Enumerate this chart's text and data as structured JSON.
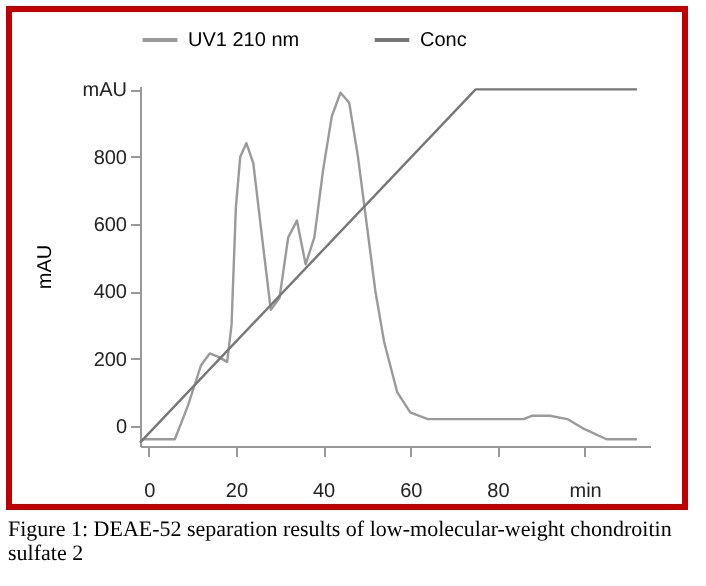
{
  "chart_data": {
    "type": "line",
    "xlabel": null,
    "ylabel": "mAU",
    "x": [
      -2,
      6,
      9,
      12,
      14,
      16,
      18,
      19,
      20,
      21,
      22.4,
      24,
      26,
      28,
      30,
      32,
      34,
      36,
      38,
      40,
      42,
      44,
      46,
      48,
      50,
      52,
      54,
      57,
      60,
      64,
      70,
      80,
      86,
      88,
      92,
      96,
      100,
      105,
      112
    ],
    "series": [
      {
        "name": "UV1  210 nm",
        "color": "#9a9a9a",
        "values": [
          -40,
          -40,
          60,
          180,
          215,
          205,
          190,
          300,
          650,
          800,
          840,
          780,
          560,
          345,
          380,
          560,
          610,
          480,
          560,
          760,
          920,
          990,
          960,
          800,
          600,
          400,
          250,
          100,
          40,
          20,
          20,
          20,
          20,
          30,
          30,
          20,
          -10,
          -40,
          -40
        ]
      },
      {
        "name": "Conc",
        "color": "#777777",
        "x": [
          -2,
          75,
          112
        ],
        "values": [
          -50,
          1000,
          1000
        ]
      }
    ],
    "xlim": [
      -2,
      115
    ],
    "xticks": [
      0,
      20,
      40,
      60,
      80,
      {
        "value": 100,
        "label": "min"
      }
    ],
    "ylim": [
      -60,
      1010
    ],
    "yticks": [
      0,
      200,
      400,
      600,
      800,
      {
        "value": 1000,
        "label": "mAU"
      }
    ],
    "legend": "top",
    "grid": false,
    "annotations": [
      "Figure 1: DEAE-52 separation results of low-molecular-weight chondroitin sulfate 2"
    ]
  }
}
